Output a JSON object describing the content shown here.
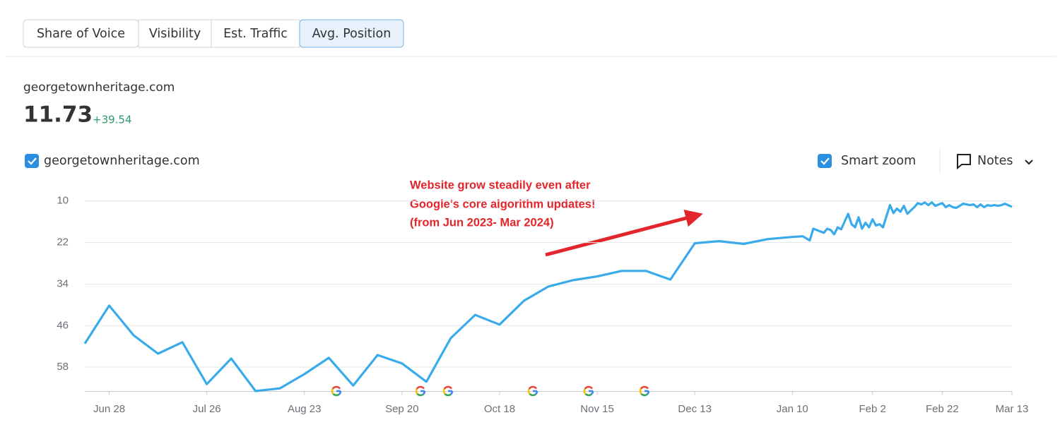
{
  "tabs": [
    "Share of Voice",
    "Visibility",
    "Est. Traffic",
    "Avg. Position"
  ],
  "active_tab": 3,
  "domain": "georgetownheritage.com",
  "metric_value": "11.73",
  "metric_change": "+39.54",
  "smart_zoom": "Smart zoom",
  "notes": "Notes",
  "annotation": [
    "Website grow steadily even after",
    "Google's core algorithm updates!",
    "(from Jun 2023- Mar 2024)"
  ],
  "chart_data": {
    "type": "line",
    "y_inverted": true,
    "grid": true,
    "xlim": [
      "Jun 21",
      "Mar 13"
    ],
    "xticks": [
      "Jun 28",
      "Jul 26",
      "Aug 23",
      "Sep 20",
      "Oct 18",
      "Nov 15",
      "Dec 13",
      "Jan 10",
      "Feb 2",
      "Feb 22",
      "Mar 13"
    ],
    "ylim": [
      7,
      65
    ],
    "yticks": [
      10,
      22,
      34,
      46,
      58
    ],
    "x": [
      "Jun 21",
      "Jun 28",
      "Jul 5",
      "Jul 12",
      "Jul 19",
      "Jul 26",
      "Aug 2",
      "Aug 9",
      "Aug 16",
      "Aug 23",
      "Aug 30",
      "Sep 6",
      "Sep 13",
      "Sep 20",
      "Sep 27",
      "Oct 4",
      "Oct 11",
      "Oct 18",
      "Oct 25",
      "Nov 1",
      "Nov 8",
      "Nov 15",
      "Nov 22",
      "Nov 29",
      "Dec 6",
      "Dec 13",
      "Dec 20",
      "Dec 27",
      "Jan 3",
      "Jan 10",
      "Jan 13",
      "Jan 15",
      "Jan 16",
      "Jan 17",
      "Jan 19",
      "Jan 20",
      "Jan 21",
      "Jan 22",
      "Jan 23",
      "Jan 24",
      "Jan 26",
      "Jan 27",
      "Jan 28",
      "Jan 29",
      "Jan 30",
      "Jan 31",
      "Feb 1",
      "Feb 2",
      "Feb 3",
      "Feb 4",
      "Feb 5",
      "Feb 7",
      "Feb 8",
      "Feb 9",
      "Feb 10",
      "Feb 11",
      "Feb 12",
      "Feb 13",
      "Feb 14",
      "Feb 15",
      "Feb 16",
      "Feb 17",
      "Feb 18",
      "Feb 19",
      "Feb 20",
      "Feb 21",
      "Feb 22",
      "Feb 23",
      "Feb 24",
      "Feb 25",
      "Feb 26",
      "Feb 27",
      "Feb 28",
      "Feb 29",
      "Mar 1",
      "Mar 2",
      "Mar 3",
      "Mar 4",
      "Mar 5",
      "Mar 6",
      "Mar 7",
      "Mar 8",
      "Mar 9",
      "Mar 10",
      "Mar 11",
      "Mar 13"
    ],
    "series": [
      {
        "name": "georgetownheritage.com",
        "color": "#3aabea",
        "values": [
          51.2,
          40.2,
          48.8,
          54.1,
          50.8,
          62.9,
          55.5,
          64.9,
          64.1,
          60.0,
          55.3,
          63.3,
          54.5,
          56.9,
          62.2,
          49.6,
          42.9,
          45.7,
          38.8,
          34.7,
          32.9,
          31.8,
          30.2,
          30.2,
          32.7,
          22.2,
          21.6,
          22.4,
          21.0,
          20.4,
          20.2,
          21.4,
          18.0,
          18.4,
          19.2,
          18.0,
          18.4,
          19.6,
          17.6,
          18.2,
          13.7,
          16.7,
          17.6,
          14.7,
          18.0,
          16.3,
          17.6,
          15.3,
          17.1,
          16.7,
          17.6,
          11.2,
          13.5,
          12.2,
          13.1,
          11.4,
          13.7,
          12.7,
          11.8,
          10.6,
          11.0,
          10.4,
          11.2,
          10.4,
          11.4,
          11.0,
          10.6,
          11.8,
          11.2,
          11.8,
          12.0,
          11.4,
          10.8,
          11.0,
          11.2,
          11.0,
          11.8,
          11.0,
          11.8,
          11.2,
          11.4,
          11.2,
          11.4,
          11.2,
          10.8,
          11.7
        ]
      }
    ]
  }
}
